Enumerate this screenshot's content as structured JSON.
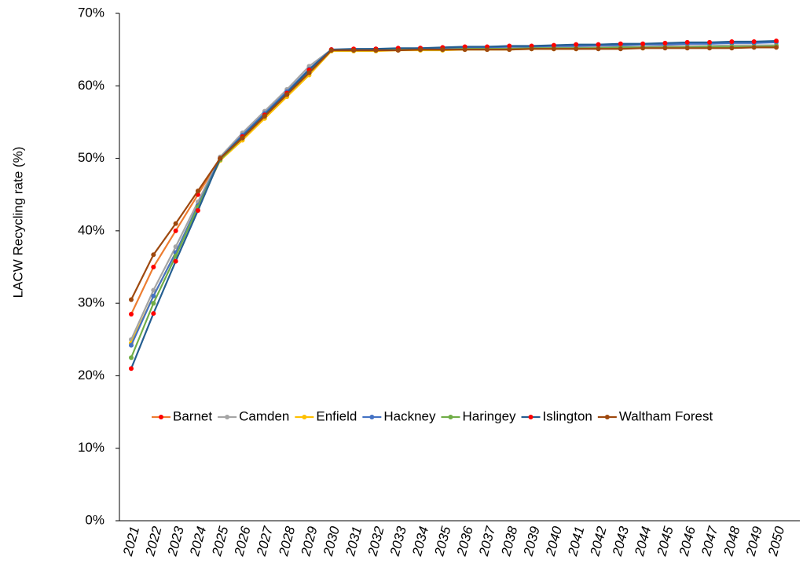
{
  "chart_data": {
    "type": "line",
    "y_label": "LACW Recycling rate (%)",
    "categories": [
      "2021",
      "2022",
      "2023",
      "2024",
      "2025",
      "2026",
      "2027",
      "2028",
      "2029",
      "2030",
      "2031",
      "2032",
      "2033",
      "2034",
      "2035",
      "2036",
      "2037",
      "2038",
      "2039",
      "2040",
      "2041",
      "2042",
      "2043",
      "2044",
      "2045",
      "2046",
      "2047",
      "2048",
      "2049",
      "2050"
    ],
    "ylim": [
      0,
      70
    ],
    "yticks": [
      {
        "value": 0,
        "label": "0%"
      },
      {
        "value": 10,
        "label": "10%"
      },
      {
        "value": 20,
        "label": "20%"
      },
      {
        "value": 30,
        "label": "30%"
      },
      {
        "value": 40,
        "label": "40%"
      },
      {
        "value": 50,
        "label": "50%"
      },
      {
        "value": 60,
        "label": "60%"
      },
      {
        "value": 70,
        "label": "70%"
      }
    ],
    "grid": false,
    "series": [
      {
        "name": "Barnet",
        "color": "#ED7D31",
        "marker_color": "#FF0000",
        "values": [
          28.5,
          35,
          40,
          45,
          50,
          53,
          56,
          59,
          62,
          65,
          65.0,
          65.0,
          65.0,
          65.1,
          65.1,
          65.1,
          65.1,
          65.2,
          65.2,
          65.2,
          65.2,
          65.3,
          65.3,
          65.3,
          65.3,
          65.4,
          65.4,
          65.4,
          65.4,
          65.5
        ]
      },
      {
        "name": "Camden",
        "color": "#A5A5A5",
        "values": [
          25,
          31.8,
          37.8,
          44,
          50.2,
          53.5,
          56.5,
          59.5,
          62.7,
          65,
          65.0,
          65.0,
          65.1,
          65.1,
          65.1,
          65.2,
          65.2,
          65.2,
          65.3,
          65.3,
          65.3,
          65.4,
          65.4,
          65.4,
          65.5,
          65.5,
          65.5,
          65.6,
          65.6,
          65.6
        ]
      },
      {
        "name": "Enfield",
        "color": "#FFC000",
        "values": [
          24.5,
          31,
          37,
          43.5,
          49.7,
          52.5,
          55.5,
          58.5,
          61.5,
          64.8,
          64.8,
          64.8,
          64.9,
          64.9,
          64.9,
          65.0,
          65.0,
          65.0,
          65.1,
          65.1,
          65.1,
          65.2,
          65.2,
          65.2,
          65.3,
          65.3,
          65.3,
          65.4,
          65.4,
          65.4
        ]
      },
      {
        "name": "Hackney",
        "color": "#4472C4",
        "values": [
          24.2,
          31,
          37,
          43.5,
          50,
          53.2,
          56.2,
          59.2,
          62.3,
          65,
          65.0,
          65.1,
          65.1,
          65.2,
          65.2,
          65.3,
          65.3,
          65.4,
          65.4,
          65.5,
          65.5,
          65.6,
          65.6,
          65.7,
          65.7,
          65.8,
          65.8,
          65.9,
          65.9,
          66.0
        ]
      },
      {
        "name": "Haringey",
        "color": "#70AD47",
        "values": [
          22.5,
          30,
          36.5,
          43.3,
          49.8,
          52.8,
          55.8,
          58.8,
          61.8,
          64.9,
          64.9,
          64.9,
          65.0,
          65.0,
          65.0,
          65.1,
          65.1,
          65.1,
          65.2,
          65.2,
          65.2,
          65.2,
          65.3,
          65.3,
          65.3,
          65.3,
          65.4,
          65.4,
          65.4,
          65.5
        ]
      },
      {
        "name": "Islington",
        "color": "#255E91",
        "marker_color": "#FF0000",
        "values": [
          21,
          28.6,
          35.8,
          42.8,
          50,
          53,
          56,
          59,
          62.2,
          65,
          65.1,
          65.1,
          65.2,
          65.2,
          65.3,
          65.4,
          65.4,
          65.5,
          65.5,
          65.6,
          65.7,
          65.7,
          65.8,
          65.8,
          65.9,
          66.0,
          66.0,
          66.1,
          66.1,
          66.2
        ]
      },
      {
        "name": "Waltham Forest",
        "color": "#9E480E",
        "values": [
          30.5,
          36.7,
          41,
          45.5,
          50,
          52.8,
          55.8,
          58.8,
          61.8,
          64.9,
          64.9,
          64.9,
          64.9,
          65.0,
          65.0,
          65.0,
          65.0,
          65.0,
          65.1,
          65.1,
          65.1,
          65.1,
          65.1,
          65.2,
          65.2,
          65.2,
          65.2,
          65.2,
          65.3,
          65.3
        ]
      }
    ]
  }
}
